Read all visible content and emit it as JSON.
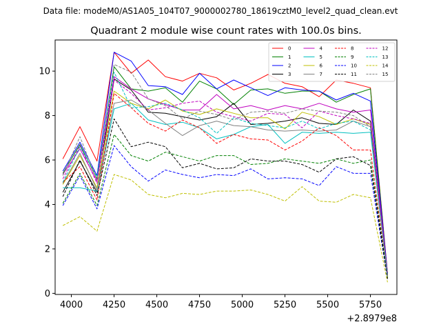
{
  "page": {
    "suptitle": "Data file: modeM0/AS1A05_104T07_9000002780_18619cztM0_level2_quad_clean.evt",
    "title": "Quadrant 2 module wise count rates with 100.0s bins.",
    "x_offset_label": "+2.8979e8"
  },
  "chart_data": {
    "type": "line",
    "title": "Quadrant 2 module wise count rates with 100.0s bins.",
    "xlabel": "",
    "ylabel": "",
    "x_offset": 289790000,
    "xlim": [
      3905,
      5905
    ],
    "ylim": [
      -0.05,
      11.4
    ],
    "xticks": [
      4000,
      4250,
      4500,
      4750,
      5000,
      5250,
      5500,
      5750
    ],
    "xtick_labels": [
      "4000",
      "4250",
      "4500",
      "4750",
      "5000",
      "5250",
      "5500",
      "5750"
    ],
    "yticks": [
      0,
      2,
      4,
      6,
      8,
      10
    ],
    "ytick_labels": [
      "0",
      "2",
      "4",
      "6",
      "8",
      "10"
    ],
    "grid": false,
    "legend_position": "top-right",
    "x": [
      3950,
      4050,
      4150,
      4250,
      4350,
      4450,
      4550,
      4650,
      4750,
      4850,
      4950,
      5050,
      5150,
      5250,
      5350,
      5450,
      5550,
      5650,
      5750,
      5850
    ],
    "series": [
      {
        "name": "0",
        "color": "#ff0000",
        "dash": "solid",
        "values": [
          6.05,
          7.5,
          5.95,
          10.85,
          9.9,
          10.5,
          9.75,
          9.55,
          9.9,
          9.7,
          9.15,
          9.45,
          9.85,
          9.45,
          9.3,
          8.85,
          9.6,
          9.45,
          9.25,
          0.9
        ]
      },
      {
        "name": "1",
        "color": "#008000",
        "dash": "solid",
        "values": [
          5.4,
          6.7,
          5.15,
          10.2,
          9.2,
          9.1,
          9.25,
          8.6,
          9.55,
          9.2,
          8.5,
          9.15,
          9.2,
          9.0,
          9.1,
          9.1,
          8.6,
          8.95,
          9.2,
          0.85
        ]
      },
      {
        "name": "2",
        "color": "#0000ff",
        "dash": "solid",
        "values": [
          5.5,
          6.8,
          5.3,
          10.85,
          10.45,
          9.35,
          9.3,
          8.95,
          9.9,
          9.2,
          9.6,
          9.25,
          8.9,
          9.25,
          9.15,
          9.1,
          8.7,
          9.0,
          8.65,
          0.9
        ]
      },
      {
        "name": "3",
        "color": "#000000",
        "dash": "solid",
        "values": [
          4.55,
          5.95,
          4.55,
          9.65,
          9.15,
          8.15,
          8.1,
          7.95,
          7.8,
          7.95,
          8.55,
          7.6,
          7.65,
          7.75,
          7.9,
          7.65,
          7.6,
          8.25,
          7.75,
          0.8
        ]
      },
      {
        "name": "4",
        "color": "#bf00bf",
        "dash": "solid",
        "values": [
          5.35,
          6.5,
          5.05,
          9.75,
          9.2,
          8.75,
          8.5,
          8.25,
          8.25,
          8.95,
          8.3,
          8.45,
          8.25,
          8.45,
          8.3,
          8.55,
          8.3,
          8.15,
          8.25,
          0.8
        ]
      },
      {
        "name": "5",
        "color": "#00bfbf",
        "dash": "solid",
        "values": [
          4.75,
          4.75,
          4.6,
          8.3,
          8.55,
          7.8,
          7.6,
          7.7,
          7.45,
          6.95,
          7.15,
          7.5,
          7.6,
          6.75,
          7.25,
          7.2,
          7.25,
          7.2,
          7.25,
          0.75
        ]
      },
      {
        "name": "6",
        "color": "#bfbf00",
        "dash": "solid",
        "values": [
          4.9,
          6.2,
          4.75,
          9.1,
          8.55,
          8.3,
          8.7,
          8.2,
          8.05,
          8.3,
          8.1,
          7.9,
          7.9,
          7.4,
          8.15,
          7.95,
          7.6,
          7.85,
          7.6,
          0.75
        ]
      },
      {
        "name": "7",
        "color": "#808080",
        "dash": "solid",
        "values": [
          4.95,
          6.3,
          4.65,
          8.55,
          8.7,
          8.25,
          7.65,
          7.1,
          7.55,
          7.75,
          7.55,
          7.5,
          7.35,
          7.3,
          7.35,
          7.3,
          7.35,
          7.75,
          7.5,
          0.8
        ]
      },
      {
        "name": "8",
        "color": "#ff0000",
        "dash": "dashed",
        "values": [
          5.0,
          5.7,
          4.2,
          9.0,
          8.35,
          7.65,
          7.3,
          7.8,
          7.45,
          6.75,
          7.15,
          6.95,
          6.9,
          6.45,
          6.85,
          7.45,
          7.1,
          6.45,
          6.45,
          0.7
        ]
      },
      {
        "name": "9",
        "color": "#008000",
        "dash": "dashed",
        "values": [
          4.05,
          5.4,
          3.95,
          7.15,
          6.2,
          5.95,
          6.35,
          6.15,
          5.95,
          6.2,
          6.2,
          5.8,
          5.85,
          6.05,
          5.95,
          5.85,
          6.05,
          5.85,
          6.0,
          0.7
        ]
      },
      {
        "name": "10",
        "color": "#0000ff",
        "dash": "dashed",
        "values": [
          3.95,
          5.3,
          3.8,
          6.65,
          5.7,
          5.05,
          5.55,
          5.35,
          5.2,
          5.35,
          5.3,
          5.6,
          5.15,
          5.2,
          5.15,
          4.85,
          5.7,
          5.4,
          5.4,
          0.65
        ]
      },
      {
        "name": "11",
        "color": "#000000",
        "dash": "dashed",
        "values": [
          4.35,
          6.0,
          4.4,
          7.85,
          6.6,
          6.8,
          6.6,
          5.65,
          5.85,
          5.6,
          5.65,
          6.05,
          5.95,
          5.95,
          5.8,
          5.45,
          6.05,
          6.15,
          5.75,
          0.65
        ]
      },
      {
        "name": "12",
        "color": "#bf00bf",
        "dash": "dashed",
        "values": [
          5.15,
          6.65,
          4.95,
          9.6,
          9.0,
          8.25,
          8.35,
          8.55,
          8.65,
          8.15,
          7.95,
          7.75,
          8.1,
          8.05,
          7.45,
          8.2,
          8.0,
          7.85,
          7.65,
          0.8
        ]
      },
      {
        "name": "13",
        "color": "#00bfbf",
        "dash": "dashed",
        "values": [
          5.0,
          6.6,
          5.25,
          9.95,
          8.35,
          8.4,
          8.55,
          8.25,
          7.9,
          7.2,
          7.9,
          7.65,
          7.55,
          7.45,
          7.75,
          7.4,
          7.65,
          7.75,
          7.35,
          0.75
        ]
      },
      {
        "name": "14",
        "color": "#bfbf00",
        "dash": "dashed",
        "values": [
          3.05,
          3.45,
          2.8,
          5.35,
          5.1,
          4.45,
          4.3,
          4.5,
          4.45,
          4.6,
          4.6,
          4.65,
          4.45,
          4.15,
          4.8,
          4.15,
          4.1,
          4.45,
          4.3,
          0.5
        ]
      },
      {
        "name": "15",
        "color": "#808080",
        "dash": "dashed",
        "values": [
          5.3,
          7.05,
          5.1,
          10.3,
          9.95,
          8.75,
          8.45,
          7.85,
          8.2,
          8.05,
          7.8,
          8.15,
          8.2,
          8.1,
          8.3,
          8.2,
          8.15,
          8.0,
          7.5,
          0.8
        ]
      }
    ]
  }
}
